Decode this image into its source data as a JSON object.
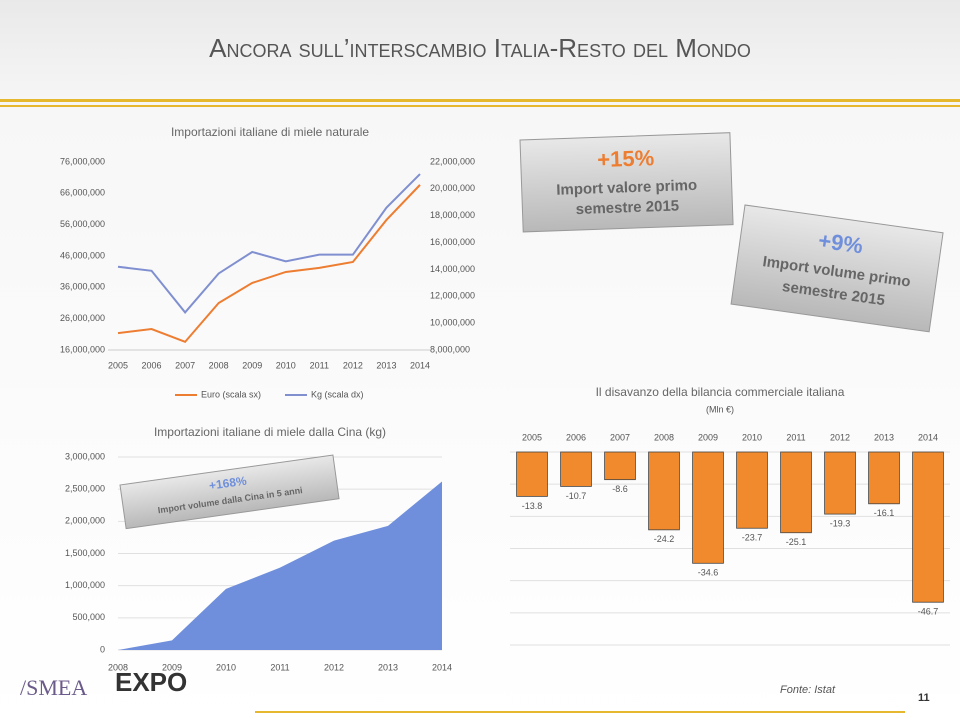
{
  "title": "Ancora sull’interscambio Italia-Resto del Mondo",
  "callouts": [
    {
      "value": "+15%",
      "text1": "Import valore primo",
      "text2": "semestre 2015"
    },
    {
      "value": "+9%",
      "text1": "Import volume primo",
      "text2": "semestre 2015"
    }
  ],
  "footer": {
    "source": "Fonte: Istat",
    "page": "11",
    "logo1": "/SMEA",
    "logo2": "EXPO"
  },
  "chart_data": [
    {
      "type": "line",
      "title": "Importazioni italiane di miele naturale",
      "categories": [
        "2005",
        "2006",
        "2007",
        "2008",
        "2009",
        "2010",
        "2011",
        "2012",
        "2013",
        "2014"
      ],
      "series": [
        {
          "name": "Euro (scala sx)",
          "color": "#ed7d31",
          "values": [
            21400000,
            22700000,
            18600000,
            31000000,
            37400000,
            40900000,
            42200000,
            44100000,
            57500000,
            68700000
          ]
        },
        {
          "name": "Kg (scala dx)",
          "color": "#7f8fd0",
          "axis": "y2",
          "values": [
            14200000,
            13900000,
            10800000,
            13700000,
            15300000,
            14600000,
            15100000,
            15100000,
            18600000,
            21100000
          ]
        }
      ],
      "ylim": [
        16000000,
        76000000
      ],
      "yticks": [
        {
          "value": 16000000,
          "label": "16,000,000"
        },
        {
          "value": 26000000,
          "label": "26,000,000"
        },
        {
          "value": 36000000,
          "label": "36,000,000"
        },
        {
          "value": 46000000,
          "label": "46,000,000"
        },
        {
          "value": 56000000,
          "label": "56,000,000"
        },
        {
          "value": 66000000,
          "label": "66,000,000"
        },
        {
          "value": 76000000,
          "label": "76,000,000"
        }
      ],
      "y2lim": [
        8000000,
        22000000
      ],
      "y2ticks": [
        {
          "value": 8000000,
          "label": "8,000,000"
        },
        {
          "value": 10000000,
          "label": "10,000,000"
        },
        {
          "value": 12000000,
          "label": "12,000,000"
        },
        {
          "value": 14000000,
          "label": "14,000,000"
        },
        {
          "value": 16000000,
          "label": "16,000,000"
        },
        {
          "value": 18000000,
          "label": "18,000,000"
        },
        {
          "value": 20000000,
          "label": "20,000,000"
        },
        {
          "value": 22000000,
          "label": "22,000,000"
        }
      ],
      "legend": "bottom",
      "grid": false
    },
    {
      "type": "area",
      "title": "Importazioni italiane di miele dalla Cina (kg)",
      "categories": [
        "2008",
        "2009",
        "2010",
        "2011",
        "2012",
        "2013",
        "2014"
      ],
      "values": [
        0,
        150000,
        950000,
        1280000,
        1700000,
        1930000,
        2620000
      ],
      "color": "#6f8fdc",
      "ylim": [
        0,
        3000000
      ],
      "yticks": [
        0,
        {
          "value": 500000,
          "label": "500,000"
        },
        {
          "value": 1000000,
          "label": "1,000,000"
        },
        {
          "value": 1500000,
          "label": "1,500,000"
        },
        {
          "value": 2000000,
          "label": "2,000,000"
        },
        {
          "value": 2500000,
          "label": "2,500,000"
        },
        {
          "value": 3000000,
          "label": "3,000,000"
        }
      ],
      "annotation": {
        "value": "+168%",
        "text": "Import volume dalla Cina in 5 anni"
      },
      "grid": true
    },
    {
      "type": "bar",
      "title": "Il disavanzo della bilancia commerciale italiana",
      "subtitle": "(Mln €)",
      "categories": [
        "2005",
        "2006",
        "2007",
        "2008",
        "2009",
        "2010",
        "2011",
        "2012",
        "2013",
        "2014"
      ],
      "values": [
        -13.8,
        -10.7,
        -8.6,
        -24.2,
        -34.6,
        -23.7,
        -25.1,
        -19.3,
        -16.1,
        -46.7
      ],
      "color": "#f08a2c",
      "ylim": [
        -60,
        0
      ],
      "yticks": [
        -60,
        -50,
        -40,
        -30,
        -20,
        -10,
        0
      ],
      "grid": true
    }
  ]
}
